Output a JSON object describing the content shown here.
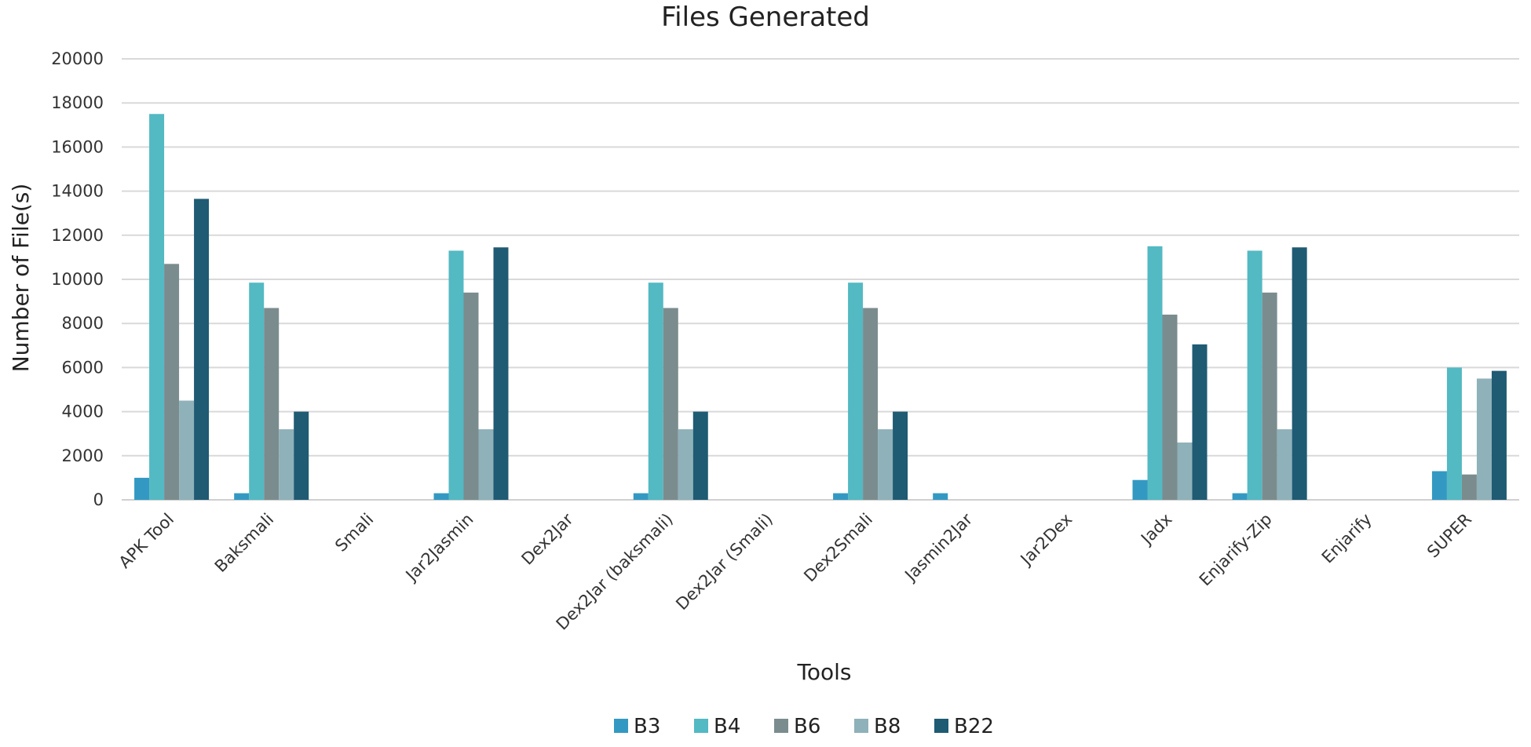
{
  "chart_data": {
    "type": "bar",
    "title": "Files Generated",
    "xlabel": "Tools",
    "ylabel": "Number of File(s)",
    "ylim": [
      0,
      20000
    ],
    "yticks": [
      0,
      2000,
      4000,
      6000,
      8000,
      10000,
      12000,
      14000,
      16000,
      18000,
      20000
    ],
    "grid": true,
    "legend_position": "bottom",
    "categories": [
      "APK Tool",
      "Baksmali",
      "Smali",
      "Jar2Jasmin",
      "Dex2Jar",
      "Dex2Jar (baksmali)",
      "Dex2Jar (Smali)",
      "Dex2Smali",
      "Jasmin2Jar",
      "Jar2Dex",
      "Jadx",
      "Enjarify-Zip",
      "Enjarify",
      "SUPER"
    ],
    "series": [
      {
        "name": "B3",
        "color": "#3399c2",
        "values": [
          1000,
          300,
          0,
          300,
          0,
          300,
          0,
          300,
          300,
          0,
          900,
          300,
          0,
          1300
        ]
      },
      {
        "name": "B4",
        "color": "#53b9c3",
        "values": [
          17500,
          9850,
          0,
          11300,
          0,
          9850,
          0,
          9850,
          0,
          0,
          11500,
          11300,
          0,
          6000
        ]
      },
      {
        "name": "B6",
        "color": "#7b8c8e",
        "values": [
          10700,
          8700,
          0,
          9400,
          0,
          8700,
          0,
          8700,
          0,
          0,
          8400,
          9400,
          0,
          1150
        ]
      },
      {
        "name": "B8",
        "color": "#8fb1b9",
        "values": [
          4500,
          3200,
          0,
          3200,
          0,
          3200,
          0,
          3200,
          0,
          0,
          2600,
          3200,
          0,
          5500
        ]
      },
      {
        "name": "B22",
        "color": "#1f5b73",
        "values": [
          13650,
          4000,
          0,
          11450,
          0,
          4000,
          0,
          4000,
          0,
          0,
          7050,
          11450,
          0,
          5850
        ]
      }
    ]
  }
}
